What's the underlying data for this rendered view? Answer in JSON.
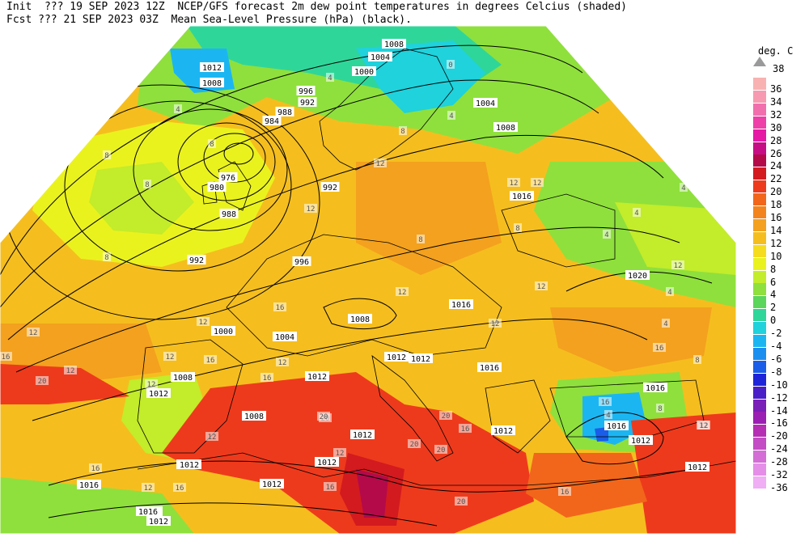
{
  "header": {
    "line1": "Init  ??? 19 SEP 2023 12Z  NCEP/GFS forecast 2m dew point temperatures in degrees Celcius (shaded)",
    "line2": "Fcst ??? 21 SEP 2023 03Z  Mean Sea-Level Pressure (hPa) (black)."
  },
  "legend": {
    "unit": "deg. C",
    "top_value": "38",
    "items": [
      {
        "label": "36",
        "color": "#f9b2b2"
      },
      {
        "label": "34",
        "color": "#f79ab1"
      },
      {
        "label": "32",
        "color": "#f26fae"
      },
      {
        "label": "30",
        "color": "#ee3fa8"
      },
      {
        "label": "28",
        "color": "#e619a5"
      },
      {
        "label": "26",
        "color": "#c70d86"
      },
      {
        "label": "24",
        "color": "#b40a4a"
      },
      {
        "label": "22",
        "color": "#d31a1f"
      },
      {
        "label": "20",
        "color": "#ee3a1c"
      },
      {
        "label": "18",
        "color": "#f2661b"
      },
      {
        "label": "16",
        "color": "#f3841d"
      },
      {
        "label": "14",
        "color": "#f3a11e"
      },
      {
        "label": "12",
        "color": "#f5be1e"
      },
      {
        "label": "10",
        "color": "#f5dc1e"
      },
      {
        "label": "8",
        "color": "#eaf21e"
      },
      {
        "label": "6",
        "color": "#c3ec2a"
      },
      {
        "label": "4",
        "color": "#8fe03c"
      },
      {
        "label": "2",
        "color": "#5bd55a"
      },
      {
        "label": "0",
        "color": "#2fd69a"
      },
      {
        "label": "-2",
        "color": "#1fd2dc"
      },
      {
        "label": "-4",
        "color": "#1bb6f2"
      },
      {
        "label": "-6",
        "color": "#1b8ff0"
      },
      {
        "label": "-8",
        "color": "#1a5de8"
      },
      {
        "label": "-10",
        "color": "#1e24d8"
      },
      {
        "label": "-12",
        "color": "#4a1fc8"
      },
      {
        "label": "-14",
        "color": "#7a1fb8"
      },
      {
        "label": "-16",
        "color": "#9a1fb2"
      },
      {
        "label": "-20",
        "color": "#b62eb4"
      },
      {
        "label": "-24",
        "color": "#c44cc4"
      },
      {
        "label": "-28",
        "color": "#d46ed6"
      },
      {
        "label": "-32",
        "color": "#e58ee8"
      },
      {
        "label": "-36",
        "color": "#f0aef5"
      }
    ]
  },
  "isobar_labels": [
    {
      "text": "1008"
    },
    {
      "text": "1004"
    },
    {
      "text": "1000"
    },
    {
      "text": "1012"
    },
    {
      "text": "1008"
    },
    {
      "text": "996"
    },
    {
      "text": "992"
    },
    {
      "text": "988"
    },
    {
      "text": "984"
    },
    {
      "text": "976"
    },
    {
      "text": "980"
    },
    {
      "text": "988"
    },
    {
      "text": "992"
    },
    {
      "text": "992"
    },
    {
      "text": "996"
    },
    {
      "text": "1000"
    },
    {
      "text": "1004"
    },
    {
      "text": "1008"
    },
    {
      "text": "1008"
    },
    {
      "text": "1012"
    },
    {
      "text": "1012"
    },
    {
      "text": "1008"
    },
    {
      "text": "1012"
    },
    {
      "text": "1012"
    },
    {
      "text": "1012"
    },
    {
      "text": "1012"
    },
    {
      "text": "1016"
    },
    {
      "text": "1016"
    },
    {
      "text": "1012"
    },
    {
      "text": "1016"
    },
    {
      "text": "1016"
    },
    {
      "text": "1020"
    },
    {
      "text": "1012"
    },
    {
      "text": "1016"
    },
    {
      "text": "1016"
    },
    {
      "text": "1012"
    },
    {
      "text": "1004"
    },
    {
      "text": "1008"
    },
    {
      "text": "1016"
    },
    {
      "text": "1012"
    },
    {
      "text": "1012"
    },
    {
      "text": "1012"
    },
    {
      "text": "1016"
    },
    {
      "text": "1012"
    }
  ],
  "dewpoint_labels": [
    {
      "text": "8"
    },
    {
      "text": "4"
    },
    {
      "text": "8"
    },
    {
      "text": "8"
    },
    {
      "text": "8"
    },
    {
      "text": "4"
    },
    {
      "text": "0"
    },
    {
      "text": "4"
    },
    {
      "text": "8"
    },
    {
      "text": "12"
    },
    {
      "text": "12"
    },
    {
      "text": "12"
    },
    {
      "text": "16"
    },
    {
      "text": "12"
    },
    {
      "text": "12"
    },
    {
      "text": "12"
    },
    {
      "text": "16"
    },
    {
      "text": "16"
    },
    {
      "text": "20"
    },
    {
      "text": "16"
    },
    {
      "text": "12"
    },
    {
      "text": "16"
    },
    {
      "text": "20"
    },
    {
      "text": "20"
    },
    {
      "text": "20"
    },
    {
      "text": "20"
    },
    {
      "text": "16"
    },
    {
      "text": "12"
    },
    {
      "text": "8"
    },
    {
      "text": "12"
    },
    {
      "text": "12"
    },
    {
      "text": "4"
    },
    {
      "text": "4"
    },
    {
      "text": "12"
    },
    {
      "text": "8"
    },
    {
      "text": "16"
    },
    {
      "text": "8"
    },
    {
      "text": "8"
    },
    {
      "text": "12"
    },
    {
      "text": "20"
    },
    {
      "text": "16"
    },
    {
      "text": "12"
    },
    {
      "text": "12"
    },
    {
      "text": "16"
    },
    {
      "text": "4"
    },
    {
      "text": "12"
    },
    {
      "text": "4"
    },
    {
      "text": "4"
    },
    {
      "text": "12"
    },
    {
      "text": "20"
    },
    {
      "text": "12"
    },
    {
      "text": "16"
    },
    {
      "text": "4"
    },
    {
      "text": "12"
    },
    {
      "text": "16"
    },
    {
      "text": "12"
    }
  ],
  "colors": {
    "isobar": "#000000",
    "coast": "#000000",
    "background": "#ffffff"
  }
}
